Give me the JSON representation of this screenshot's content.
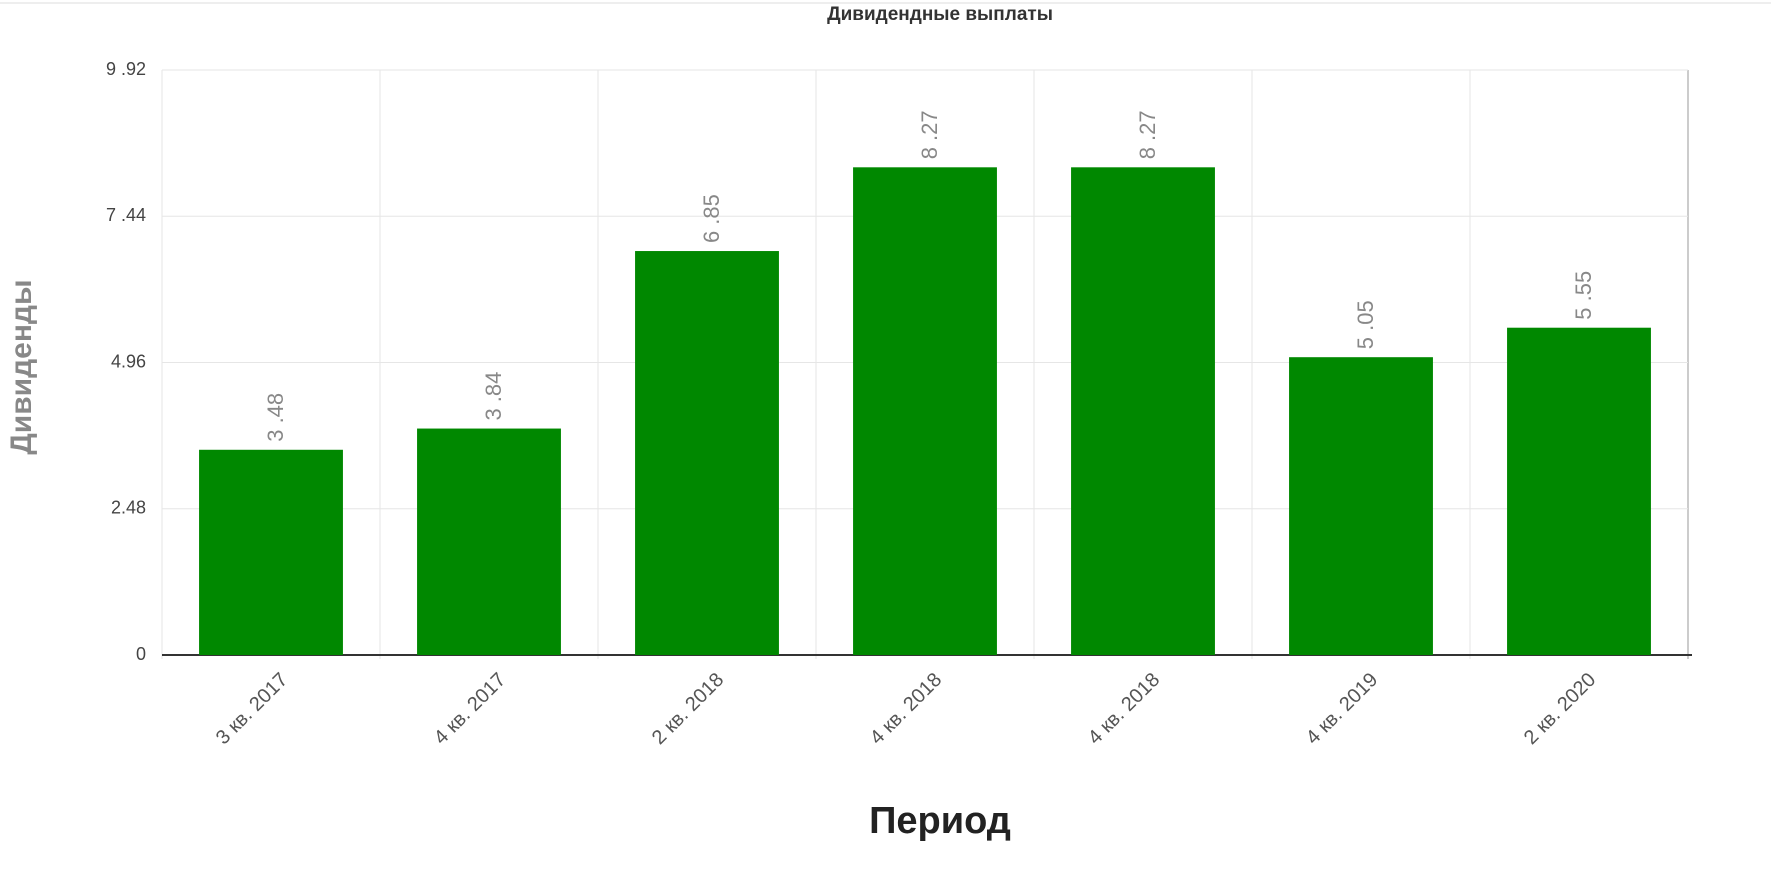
{
  "chart_data": {
    "type": "bar",
    "title": "Дивидендные выплаты",
    "x_label": "Период",
    "y_label": "Дивиденды",
    "categories": [
      "3 кв. 2017",
      "4 кв. 2017",
      "2 кв. 2018",
      "4 кв. 2018",
      "4 кв. 2018",
      "4 кв. 2019",
      "2 кв. 2020"
    ],
    "values": [
      3.48,
      3.84,
      6.85,
      8.27,
      8.27,
      5.05,
      5.55
    ],
    "value_labels": [
      "3 .48",
      "3 .84",
      "6 .85",
      "8 .27",
      "8 .27",
      "5 .05",
      "5 .55"
    ],
    "color": "#008800",
    "ylim": [
      0,
      9.92
    ],
    "yticks": [
      0,
      2.48,
      {
        "value": 4.96,
        "label": "4.96"
      },
      {
        "value": 7.44,
        "label": "7 .44"
      },
      {
        "value": 9.92,
        "label": "9 .92"
      }
    ],
    "grid": true
  }
}
